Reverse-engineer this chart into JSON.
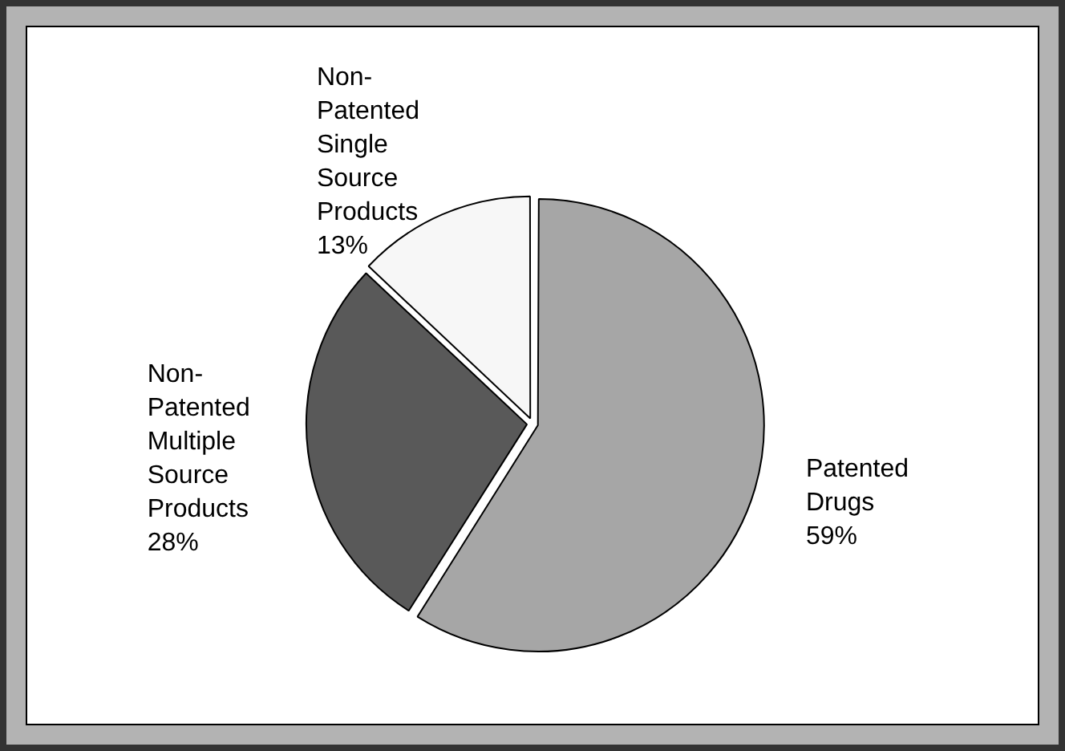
{
  "chart_data": {
    "type": "pie",
    "categories": [
      "Patented Drugs",
      "Non-Patented Multiple Source Products",
      "Non-Patented Single Source Products"
    ],
    "values": [
      59,
      28,
      13
    ],
    "value_labels": [
      "59%",
      "28%",
      "13%"
    ],
    "colors": [
      "#a6a6a6",
      "#595959",
      "#f7f7f7"
    ],
    "legend": false
  }
}
